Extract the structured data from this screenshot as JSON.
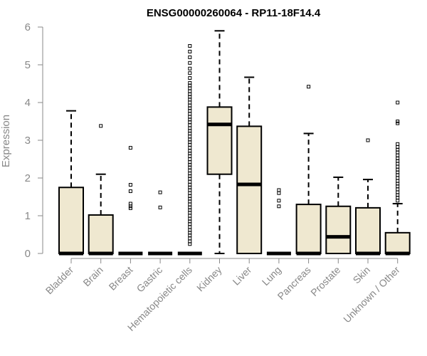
{
  "chart_data": {
    "type": "boxplot",
    "title": "ENSG00000260064 - RP11-18F14.4",
    "xlabel": "",
    "ylabel": "Expression",
    "ylim": [
      0,
      6
    ],
    "yticks": [
      0,
      1,
      2,
      3,
      4,
      5,
      6
    ],
    "grid": false,
    "legend": "none",
    "colors": {
      "box_fill": "#efe8d0",
      "stroke": "#000000",
      "axis": "#888888"
    },
    "categories": [
      "Bladder",
      "Brain",
      "Breast",
      "Gastric",
      "Hematopoietic cells",
      "Kidney",
      "Liver",
      "Lung",
      "Pancreas",
      "Prostate",
      "Skin",
      "Unknown / Other"
    ],
    "boxes": [
      {
        "category": "Bladder",
        "min": 0,
        "q1": 0,
        "median": 0,
        "q3": 1.75,
        "max": 3.78,
        "outliers": []
      },
      {
        "category": "Brain",
        "min": 0,
        "q1": 0,
        "median": 0,
        "q3": 1.02,
        "max": 2.1,
        "outliers": [
          3.38
        ]
      },
      {
        "category": "Breast",
        "min": 0,
        "q1": 0,
        "median": 0,
        "q3": 0,
        "max": 0,
        "outliers": [
          1.2,
          1.25,
          1.32,
          1.65,
          1.82,
          2.8
        ]
      },
      {
        "category": "Gastric",
        "min": 0,
        "q1": 0,
        "median": 0,
        "q3": 0,
        "max": 0,
        "outliers": [
          1.22,
          1.62
        ]
      },
      {
        "category": "Hematopoietic cells",
        "min": 0,
        "q1": 0,
        "median": 0,
        "q3": 0,
        "max": 0,
        "outliers": [
          0.25,
          0.32,
          0.4,
          0.48,
          0.55,
          0.62,
          0.7,
          0.78,
          0.85,
          0.92,
          1.0,
          1.08,
          1.15,
          1.22,
          1.3,
          1.38,
          1.45,
          1.52,
          1.6,
          1.68,
          1.75,
          1.82,
          1.9,
          1.98,
          2.05,
          2.12,
          2.2,
          2.28,
          2.35,
          2.42,
          2.5,
          2.58,
          2.65,
          2.72,
          2.8,
          2.88,
          2.95,
          3.02,
          3.1,
          3.18,
          3.25,
          3.32,
          3.4,
          3.48,
          3.55,
          3.62,
          3.7,
          3.78,
          3.85,
          3.92,
          4.0,
          4.08,
          4.15,
          4.22,
          4.3,
          4.38,
          4.45,
          4.52,
          4.65,
          4.78,
          4.9,
          5.05,
          5.2,
          5.35,
          5.5
        ]
      },
      {
        "category": "Kidney",
        "min": 0,
        "q1": 2.1,
        "median": 3.42,
        "q3": 3.88,
        "max": 5.9,
        "outliers": []
      },
      {
        "category": "Liver",
        "min": 0,
        "q1": 0,
        "median": 1.83,
        "q3": 3.37,
        "max": 4.67,
        "outliers": []
      },
      {
        "category": "Lung",
        "min": 0,
        "q1": 0,
        "median": 0,
        "q3": 0,
        "max": 0,
        "outliers": [
          1.25,
          1.4,
          1.6,
          1.68
        ]
      },
      {
        "category": "Pancreas",
        "min": 0,
        "q1": 0,
        "median": 0,
        "q3": 1.3,
        "max": 3.18,
        "outliers": [
          4.42
        ]
      },
      {
        "category": "Prostate",
        "min": 0,
        "q1": 0,
        "median": 0.44,
        "q3": 1.25,
        "max": 2.02,
        "outliers": []
      },
      {
        "category": "Skin",
        "min": 0,
        "q1": 0,
        "median": 0,
        "q3": 1.21,
        "max": 1.96,
        "outliers": [
          3.0
        ]
      },
      {
        "category": "Unknown / Other",
        "min": 0,
        "q1": 0,
        "median": 0,
        "q3": 0.55,
        "max": 1.32,
        "outliers": [
          1.4,
          1.48,
          1.55,
          1.62,
          1.7,
          1.78,
          1.85,
          1.92,
          2.0,
          2.08,
          2.15,
          2.22,
          2.3,
          2.38,
          2.45,
          2.52,
          2.6,
          2.68,
          2.75,
          2.82,
          2.9,
          3.45,
          3.5,
          4.0
        ]
      }
    ]
  }
}
